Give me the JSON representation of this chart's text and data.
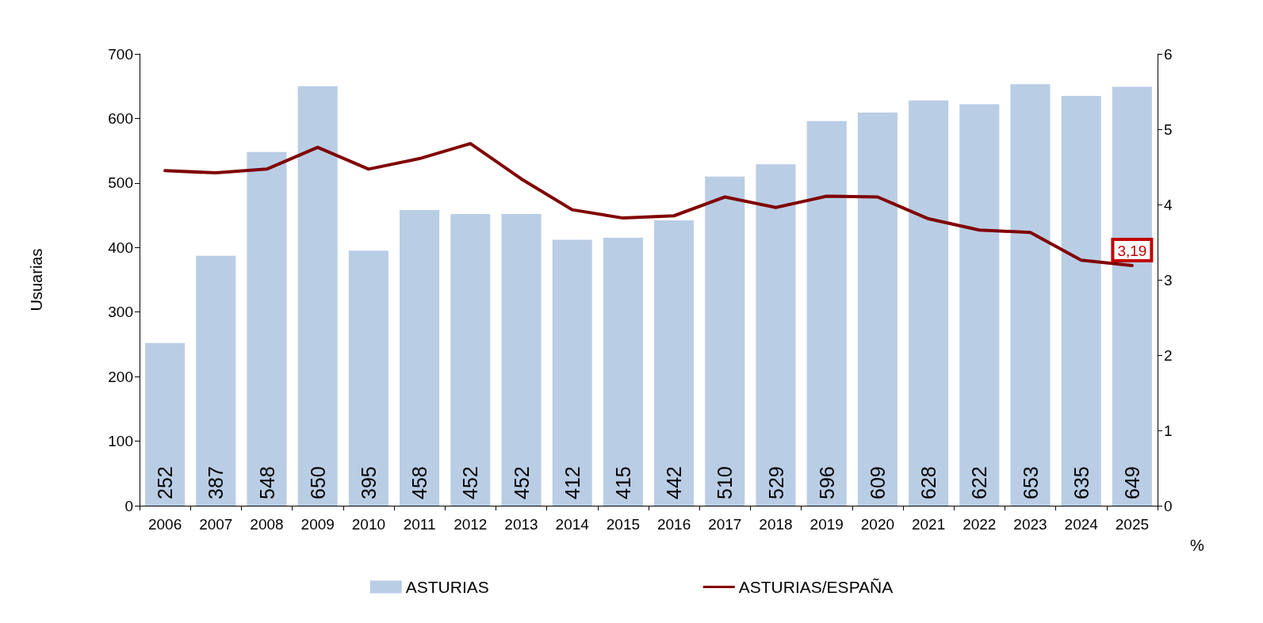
{
  "chart_data": {
    "type": "bar",
    "categories": [
      "2006",
      "2007",
      "2008",
      "2009",
      "2010",
      "2011",
      "2012",
      "2013",
      "2014",
      "2015",
      "2016",
      "2017",
      "2018",
      "2019",
      "2020",
      "2021",
      "2022",
      "2023",
      "2024",
      "2025"
    ],
    "series": [
      {
        "name": "ASTURIAS",
        "color": "#b9cde5",
        "values": [
          252,
          387,
          548,
          650,
          395,
          458,
          452,
          452,
          412,
          415,
          442,
          510,
          529,
          596,
          609,
          628,
          622,
          653,
          635,
          649
        ],
        "value_labels": [
          "252",
          "387",
          "548",
          "650",
          "395",
          "458",
          "452",
          "452",
          "412",
          "415",
          "442",
          "510",
          "529",
          "596",
          "609",
          "628",
          "622",
          "653",
          "635",
          "649"
        ]
      },
      {
        "name": "ASTURIAS/ESPAÑA",
        "type": "line",
        "axis": "y2",
        "color": "#800000",
        "values": [
          4.45,
          4.42,
          4.47,
          4.76,
          4.47,
          4.61,
          4.81,
          4.34,
          3.93,
          3.82,
          3.85,
          4.1,
          3.96,
          4.11,
          4.1,
          3.81,
          3.66,
          3.63,
          3.26,
          3.19
        ],
        "value_labels": [
          null,
          null,
          null,
          null,
          null,
          null,
          null,
          null,
          null,
          null,
          null,
          null,
          null,
          null,
          null,
          null,
          null,
          null,
          null,
          "3,19"
        ]
      }
    ],
    "ylabel": "Usuarias",
    "y2label": "%",
    "ylim": [
      0,
      700
    ],
    "yticks": [
      0,
      100,
      200,
      300,
      400,
      500,
      600,
      700
    ],
    "y2lim": [
      0,
      6
    ],
    "y2ticks": [
      0,
      1,
      2,
      3,
      4,
      5,
      6
    ],
    "grid": false,
    "legend": "bottom",
    "marker": "none",
    "line_style": "solid"
  }
}
